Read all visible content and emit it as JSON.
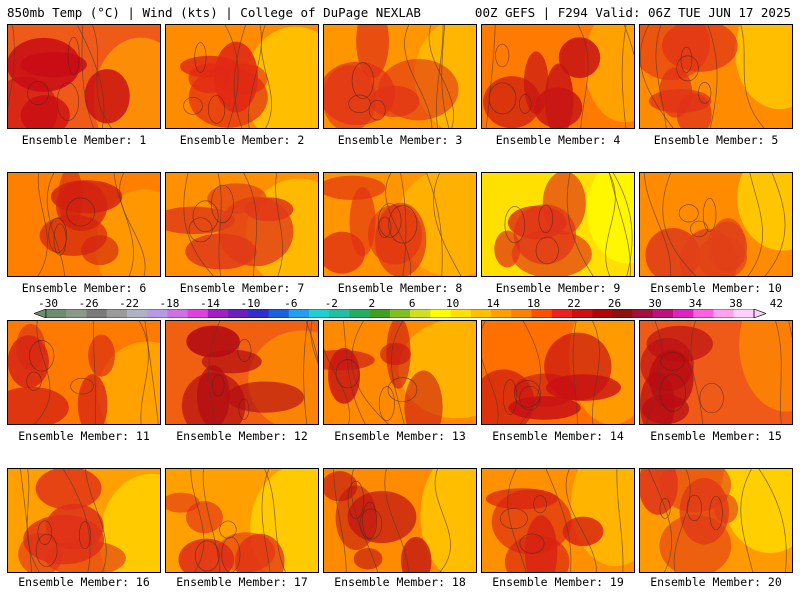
{
  "header": {
    "left": "850mb Temp (°C) | Wind (kts) | College of DuPage NEXLAB",
    "right": "00Z GEFS | F294 Valid: 06Z TUE JUN 17 2025"
  },
  "colorbar": {
    "ticks": [
      "-30",
      "-26",
      "-22",
      "-18",
      "-14",
      "-10",
      "-6",
      "-2",
      "2",
      "6",
      "10",
      "14",
      "18",
      "22",
      "26",
      "30",
      "34",
      "38",
      "42"
    ],
    "colors": [
      "#6e8c6e",
      "#8a9a8a",
      "#7a7a7a",
      "#9a9a9a",
      "#b0b0c8",
      "#b69ae8",
      "#d070e8",
      "#e040e0",
      "#a020c8",
      "#6a20c0",
      "#3030d0",
      "#1a60e0",
      "#20a0f0",
      "#20d0d0",
      "#20c0a0",
      "#20b060",
      "#40a020",
      "#80c020",
      "#d0e020",
      "#ffff00",
      "#ffe000",
      "#ffc000",
      "#ffa000",
      "#ff8000",
      "#ff5000",
      "#f02020",
      "#d01010",
      "#b00808",
      "#901010",
      "#a01040",
      "#c01080",
      "#e020c0",
      "#ff60e0",
      "#ffa0f0",
      "#ffd0ff"
    ]
  },
  "members": [
    {
      "label": "Ensemble Member: 1",
      "base": "#f05a18",
      "hot": "#c80a14",
      "cool": "#ffa000"
    },
    {
      "label": "Ensemble Member: 2",
      "base": "#ff8c00",
      "hot": "#e02814",
      "cool": "#ffd000"
    },
    {
      "label": "Ensemble Member: 3",
      "base": "#ff9600",
      "hot": "#e03018",
      "cool": "#ffc000"
    },
    {
      "label": "Ensemble Member: 4",
      "base": "#ff7a00",
      "hot": "#c81414",
      "cool": "#ffb000"
    },
    {
      "label": "Ensemble Member: 5",
      "base": "#ff8c00",
      "hot": "#e03018",
      "cool": "#ffd000"
    },
    {
      "label": "Ensemble Member: 6",
      "base": "#ff8000",
      "hot": "#d02010",
      "cool": "#ffa000"
    },
    {
      "label": "Ensemble Member: 7",
      "base": "#ff9000",
      "hot": "#e03a18",
      "cool": "#ffc800"
    },
    {
      "label": "Ensemble Member: 8",
      "base": "#ff9600",
      "hot": "#e02c14",
      "cool": "#ffb800"
    },
    {
      "label": "Ensemble Member: 9",
      "base": "#ffe000",
      "hot": "#e03018",
      "cool": "#ffff00"
    },
    {
      "label": "Ensemble Member: 10",
      "base": "#ff8c00",
      "hot": "#e04018",
      "cool": "#ffd800"
    },
    {
      "label": "Ensemble Member: 11",
      "base": "#ff7a00",
      "hot": "#d82814",
      "cool": "#ffb000"
    },
    {
      "label": "Ensemble Member: 12",
      "base": "#f06010",
      "hot": "#b40c14",
      "cool": "#ff9000"
    },
    {
      "label": "Ensemble Member: 13",
      "base": "#ff8a00",
      "hot": "#c81414",
      "cool": "#ffc000"
    },
    {
      "label": "Ensemble Member: 14",
      "base": "#ff7000",
      "hot": "#c81014",
      "cool": "#ffa800"
    },
    {
      "label": "Ensemble Member: 15",
      "base": "#f05a18",
      "hot": "#b80c14",
      "cool": "#ff8c00"
    },
    {
      "label": "Ensemble Member: 16",
      "base": "#ffa000",
      "hot": "#e03018",
      "cool": "#ffd800"
    },
    {
      "label": "Ensemble Member: 17",
      "base": "#ffa000",
      "hot": "#e02c18",
      "cool": "#ffd800"
    },
    {
      "label": "Ensemble Member: 18",
      "base": "#ff8c00",
      "hot": "#c01014",
      "cool": "#ffd000"
    },
    {
      "label": "Ensemble Member: 19",
      "base": "#ff9000",
      "hot": "#d82014",
      "cool": "#ffc000"
    },
    {
      "label": "Ensemble Member: 20",
      "base": "#ff9a00",
      "hot": "#e03818",
      "cool": "#ffe000"
    }
  ]
}
